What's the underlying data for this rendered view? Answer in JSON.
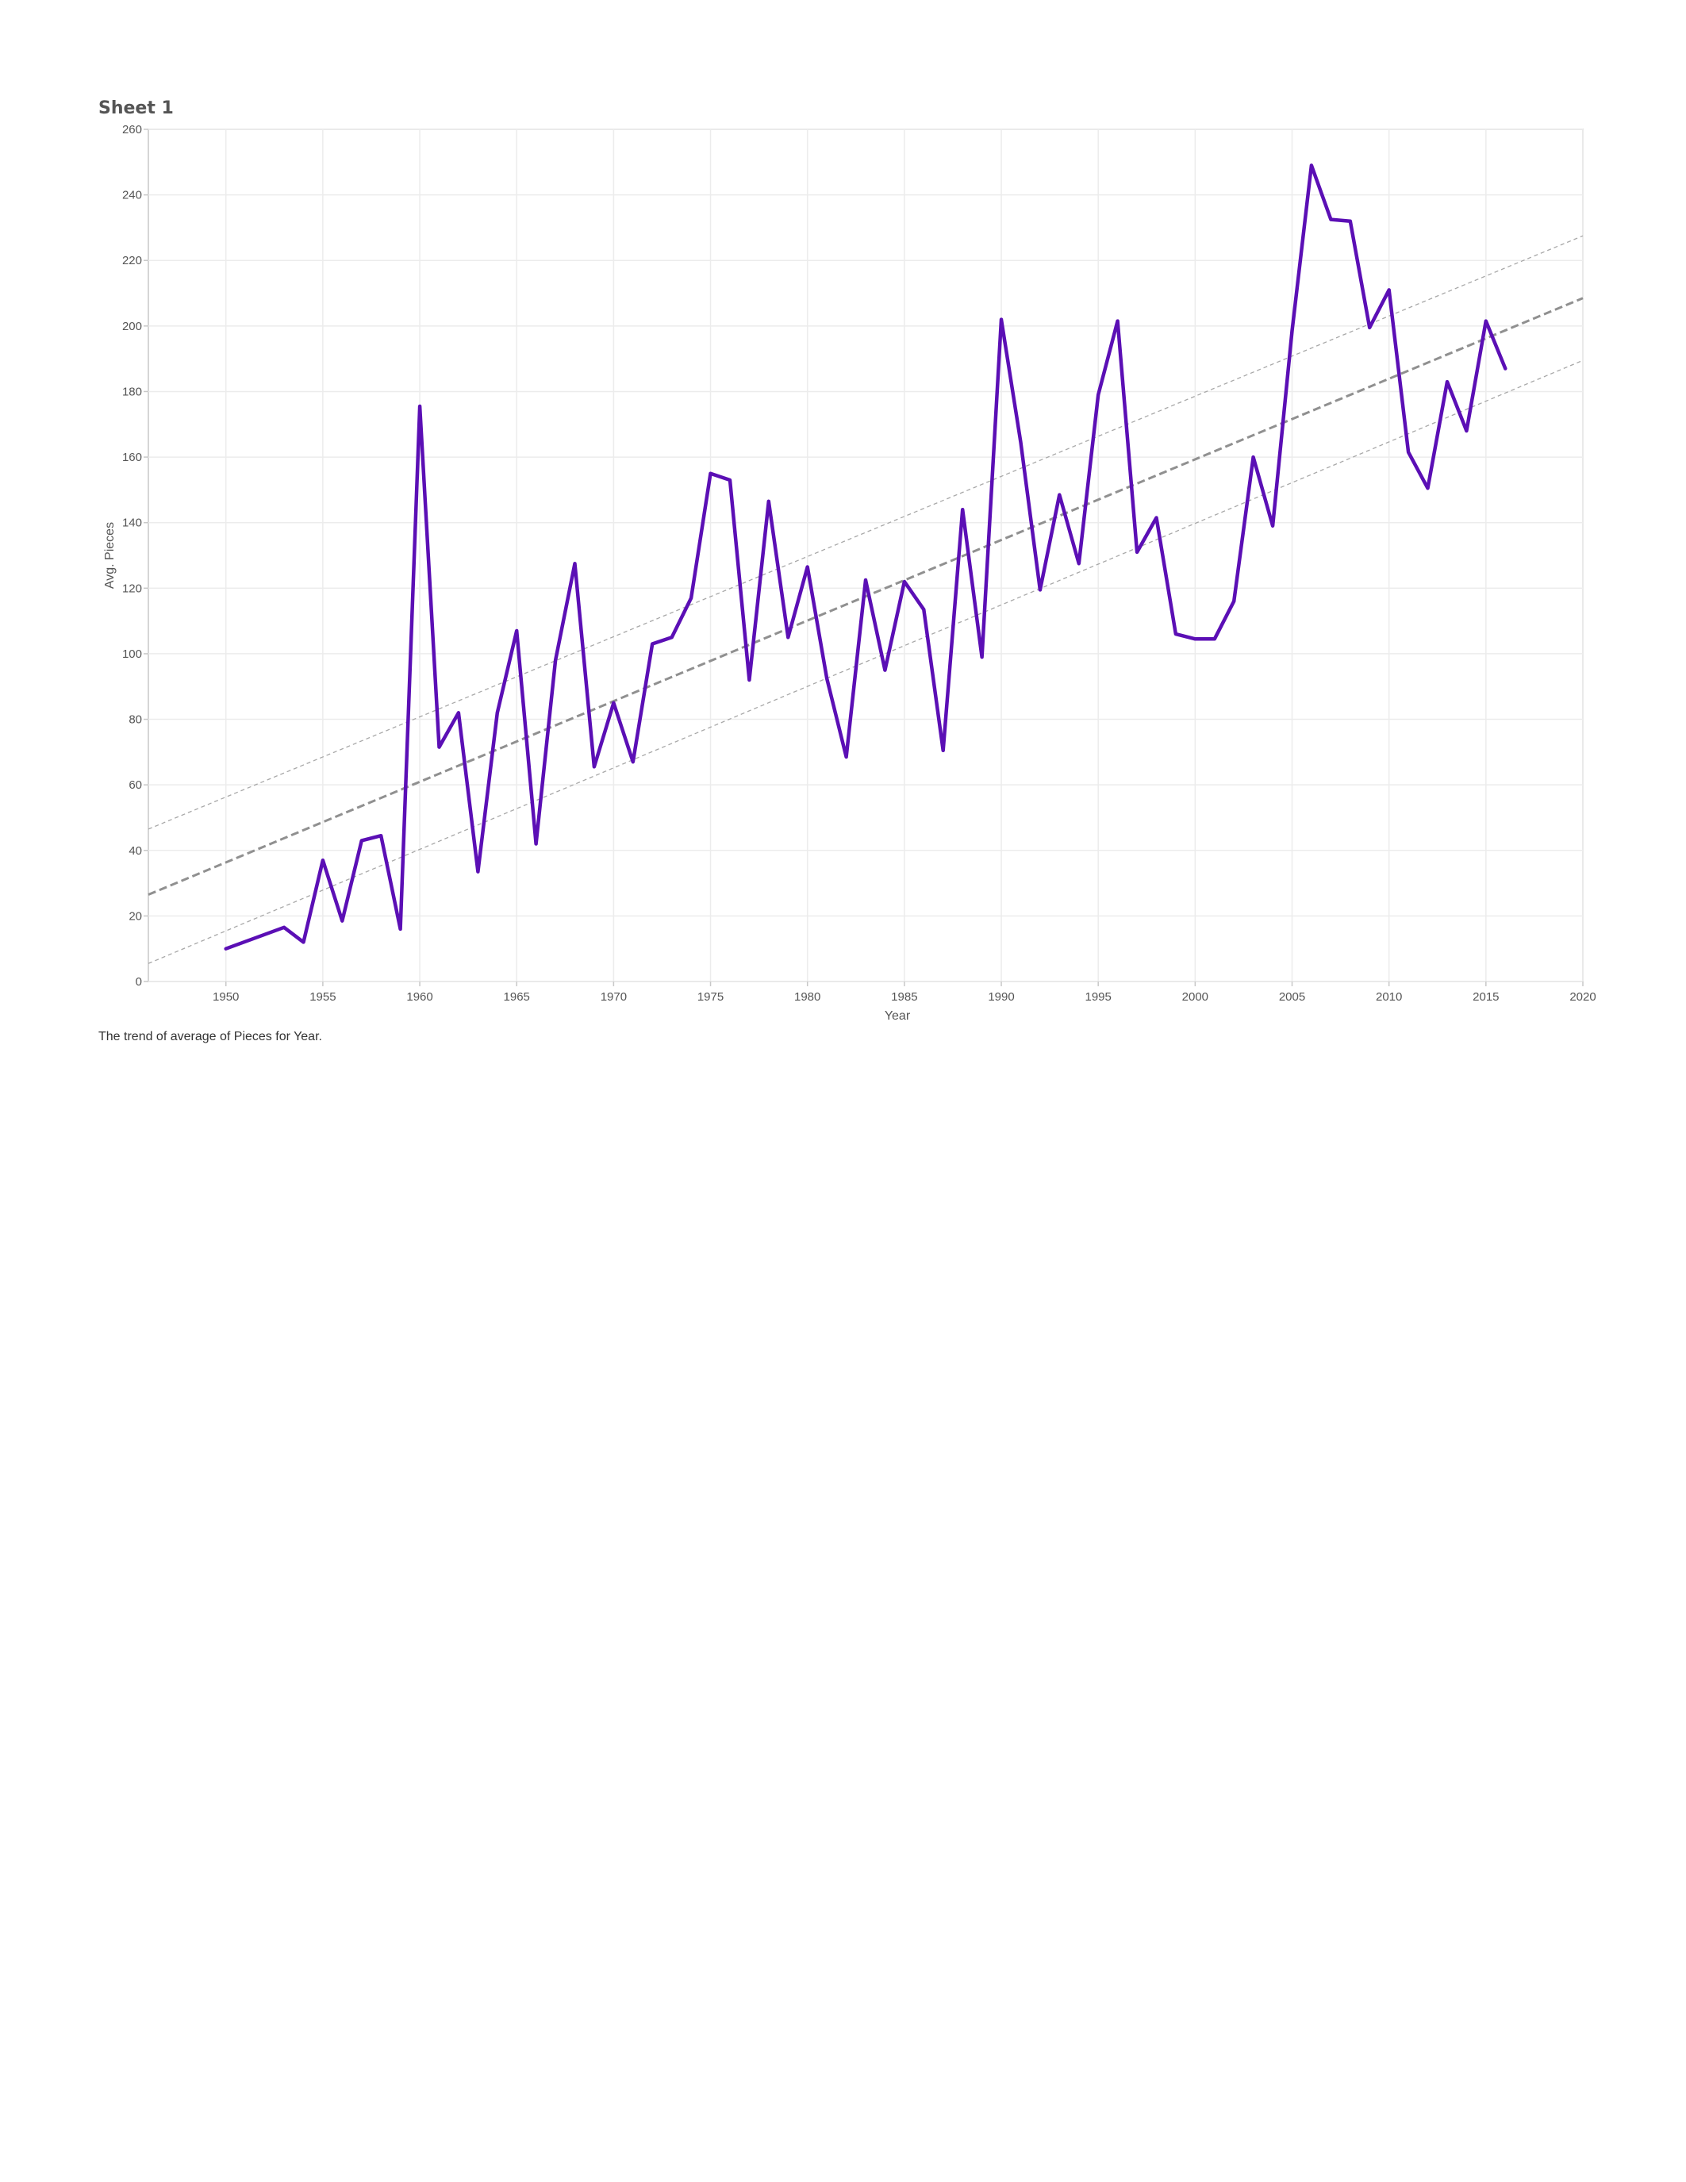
{
  "sheet": {
    "title": "Sheet 1",
    "caption": "The trend of average of Pieces for Year."
  },
  "colors": {
    "series_line": "#5b0fb5",
    "trend_line": "#999999",
    "grid": "#ececec",
    "axis": "#c8c8c8"
  },
  "chart_data": {
    "type": "line",
    "title": "",
    "xlabel": "Year",
    "ylabel": "Avg. Pieces",
    "xlim": [
      1946,
      2020
    ],
    "ylim": [
      0,
      260
    ],
    "x_ticks": [
      1950,
      1955,
      1960,
      1965,
      1970,
      1975,
      1980,
      1985,
      1990,
      1995,
      2000,
      2005,
      2010,
      2015,
      2020
    ],
    "y_ticks": [
      0,
      20,
      40,
      60,
      80,
      100,
      120,
      140,
      160,
      180,
      200,
      220,
      240,
      260
    ],
    "grid": true,
    "legend": "none",
    "series": [
      {
        "x": [
          1950,
          1953,
          1954,
          1955,
          1956,
          1957,
          1958,
          1959,
          1960,
          1961,
          1962,
          1963,
          1964,
          1965,
          1966,
          1967,
          1968,
          1969,
          1970,
          1971,
          1972,
          1973,
          1974,
          1975,
          1976,
          1977,
          1978,
          1979,
          1980,
          1981,
          1982,
          1983,
          1984,
          1985,
          1986,
          1987,
          1988,
          1989,
          1990,
          1991,
          1992,
          1993,
          1994,
          1995,
          1996,
          1997,
          1998,
          1999,
          2000,
          2001,
          2002,
          2003,
          2004,
          2005,
          2006,
          2007,
          2008,
          2009,
          2010,
          2011,
          2012,
          2013,
          2014,
          2015,
          2016
        ],
        "values": [
          10,
          16.5,
          12,
          37,
          18.5,
          43,
          44.5,
          16,
          175.5,
          71.5,
          82,
          33.5,
          82,
          107,
          42,
          98,
          127.5,
          65.5,
          85,
          67,
          103,
          105,
          117,
          155,
          153,
          92,
          146.5,
          105,
          126.5,
          92.5,
          68.5,
          122.5,
          95,
          122,
          113.5,
          70.5,
          144,
          99,
          202,
          164.5,
          119.5,
          148.5,
          127.5,
          179,
          201.5,
          131,
          141.5,
          106,
          104.5,
          104.5,
          116,
          160,
          139,
          198.5,
          249,
          232.5,
          232,
          199.5,
          211,
          161.5,
          150.5,
          183,
          168,
          201.5,
          187
        ]
      }
    ],
    "trend_lines": [
      {
        "style": "confidence-upper",
        "values_at_xlim": [
          46.5,
          227.5
        ]
      },
      {
        "style": "trend",
        "values_at_xlim": [
          26.5,
          208.5
        ]
      },
      {
        "style": "confidence-lower",
        "values_at_xlim": [
          5.5,
          189.5
        ]
      }
    ]
  }
}
